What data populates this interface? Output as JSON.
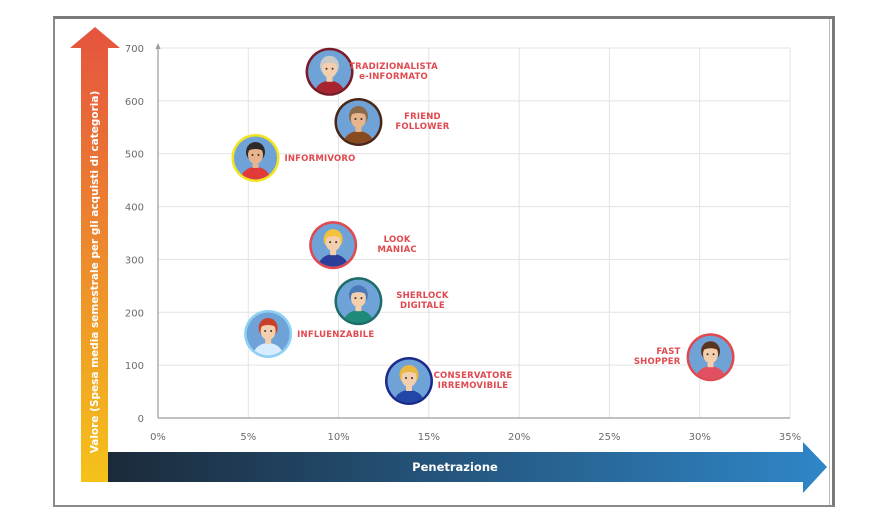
{
  "chart_data": {
    "type": "scatter",
    "title": "",
    "xlabel": "Penetrazione",
    "ylabel": "Valore (Spesa media semestrale per gli acquisti di categoria)",
    "xlim": [
      0,
      35
    ],
    "ylim": [
      0,
      700
    ],
    "x_ticks": [
      0,
      5,
      10,
      15,
      20,
      25,
      30,
      35
    ],
    "x_tick_labels": [
      "0%",
      "5%",
      "10%",
      "15%",
      "20%",
      "25%",
      "30%",
      "35%"
    ],
    "y_ticks": [
      0,
      100,
      200,
      300,
      400,
      500,
      600,
      700
    ],
    "y_tick_labels": [
      "0",
      "100",
      "200",
      "300",
      "400",
      "500",
      "600",
      "700"
    ],
    "grid": true,
    "legend": "none",
    "points": [
      {
        "name": "tradizionalista",
        "label": [
          "TRADIZIONALISTA",
          "e-INFORMATO"
        ],
        "x": 9.5,
        "y": 655,
        "ring": "#7a1a28",
        "shirt": "#a8242f",
        "hair": "#c9c9c9",
        "skin": "#f4cfae",
        "label_side": "right"
      },
      {
        "name": "friend-follower",
        "label": [
          "FRIEND",
          "FOLLOWER"
        ],
        "x": 11.1,
        "y": 560,
        "ring": "#4a2616",
        "shirt": "#8a4a20",
        "hair": "#8a6a4a",
        "skin": "#e8b48e",
        "label_side": "right"
      },
      {
        "name": "informivoro",
        "label": [
          "INFORMIVORO"
        ],
        "x": 5.4,
        "y": 492,
        "ring": "#f3e320",
        "shirt": "#e03a3a",
        "hair": "#2e2a28",
        "skin": "#e8b48e",
        "label_side": "right"
      },
      {
        "name": "look-maniac",
        "label": [
          "LOOK",
          "MANIAC"
        ],
        "x": 9.7,
        "y": 327,
        "ring": "#e0494f",
        "shirt": "#2b3f9a",
        "hair": "#f4c23a",
        "skin": "#f4cfae",
        "label_side": "right"
      },
      {
        "name": "sherlock-digitale",
        "label": [
          "SHERLOCK",
          "DIGITALE"
        ],
        "x": 11.1,
        "y": 221,
        "ring": "#1d6d6a",
        "shirt": "#1f8a7a",
        "hair": "#4a7ab8",
        "skin": "#f4cfae",
        "label_side": "right"
      },
      {
        "name": "influenzabile",
        "label": [
          "INFLUENZABILE"
        ],
        "x": 6.1,
        "y": 159,
        "ring": "#8ed0f2",
        "shirt": "#d8ecff",
        "hair": "#c8412a",
        "skin": "#f4cfae",
        "label_side": "right"
      },
      {
        "name": "conservatore-irremovibile",
        "label": [
          "CONSERVATORE",
          "IRREMOVIBILE"
        ],
        "x": 13.9,
        "y": 70,
        "ring": "#1a2a8a",
        "shirt": "#2245a8",
        "hair": "#e8b840",
        "skin": "#f4cfae",
        "label_side": "right"
      },
      {
        "name": "fast-shopper",
        "label": [
          "FAST",
          "SHOPPER"
        ],
        "x": 30.6,
        "y": 115,
        "ring": "#e0494f",
        "shirt": "#e05060",
        "hair": "#5a3420",
        "skin": "#f4cfae",
        "label_side": "left"
      }
    ]
  },
  "colors": {
    "y_arrow_top": "#e5533f",
    "y_arrow_bottom": "#f5c21a",
    "x_arrow_left": "#1b2a3a",
    "x_arrow_right": "#2f86c8",
    "label": "#e0494f",
    "grid": "#e3e3e3",
    "circle_bg": "#6fa3d8"
  }
}
